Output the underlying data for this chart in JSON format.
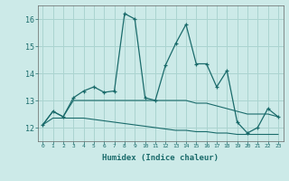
{
  "xlabel": "Humidex (Indice chaleur)",
  "ylabel": "",
  "background_color": "#cceae8",
  "grid_color": "#aad4d0",
  "line_color": "#1a6b6b",
  "x_values": [
    0,
    1,
    2,
    3,
    4,
    5,
    6,
    7,
    8,
    9,
    10,
    11,
    12,
    13,
    14,
    15,
    16,
    17,
    18,
    19,
    20,
    21,
    22,
    23
  ],
  "line1_y": [
    12.1,
    12.6,
    12.4,
    13.1,
    13.35,
    13.5,
    13.3,
    13.35,
    16.2,
    16.0,
    13.1,
    13.0,
    14.3,
    15.1,
    15.8,
    14.35,
    14.35,
    13.5,
    14.1,
    12.2,
    11.8,
    12.0,
    12.7,
    12.4
  ],
  "line2_y": [
    12.1,
    12.6,
    12.4,
    13.0,
    13.0,
    13.0,
    13.0,
    13.0,
    13.0,
    13.0,
    13.0,
    13.0,
    13.0,
    13.0,
    13.0,
    12.9,
    12.9,
    12.8,
    12.7,
    12.6,
    12.5,
    12.5,
    12.5,
    12.4
  ],
  "line3_y": [
    12.1,
    12.35,
    12.35,
    12.35,
    12.35,
    12.3,
    12.25,
    12.2,
    12.15,
    12.1,
    12.05,
    12.0,
    11.95,
    11.9,
    11.9,
    11.85,
    11.85,
    11.8,
    11.8,
    11.75,
    11.75,
    11.75,
    11.75,
    11.75
  ],
  "ylim": [
    11.5,
    16.5
  ],
  "yticks": [
    12,
    13,
    14,
    15,
    16
  ],
  "xlim": [
    -0.5,
    23.5
  ]
}
